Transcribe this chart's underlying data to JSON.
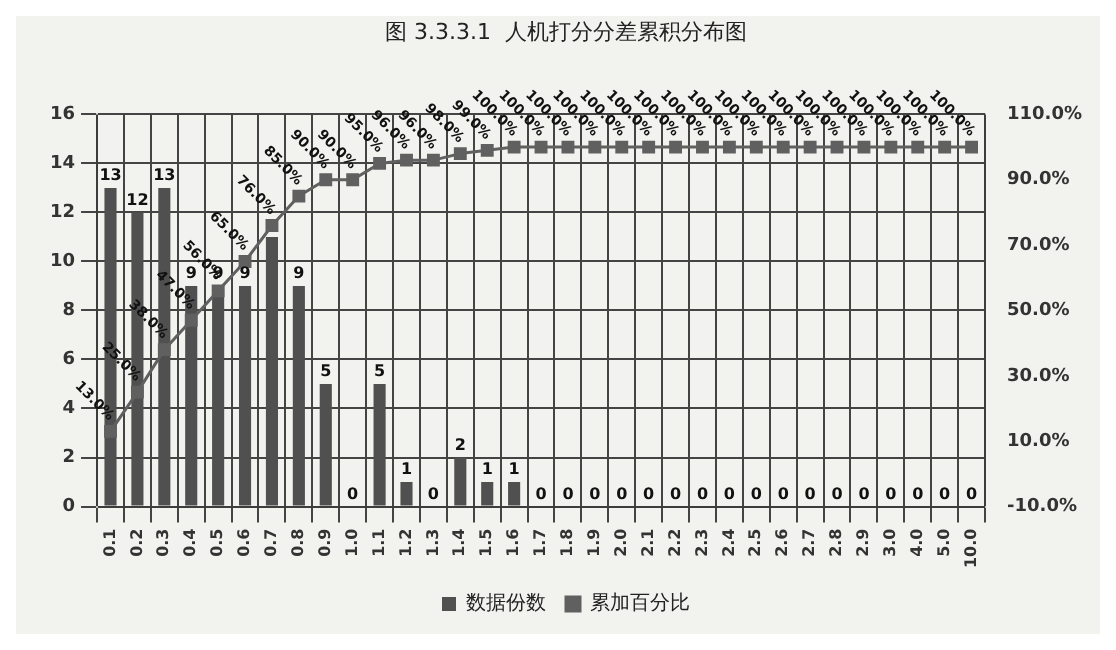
{
  "chart_data": {
    "type": "bar",
    "title": "图 3.3.3.1  人机打分分差累积分布图",
    "categories": [
      "0.1",
      "0.2",
      "0.3",
      "0.4",
      "0.5",
      "0.6",
      "0.7",
      "0.8",
      "0.9",
      "1.0",
      "1.1",
      "1.2",
      "1.3",
      "1.4",
      "1.5",
      "1.6",
      "1.7",
      "1.8",
      "1.9",
      "2.0",
      "2.1",
      "2.2",
      "2.3",
      "2.4",
      "2.5",
      "2.6",
      "2.7",
      "2.8",
      "2.9",
      "3.0",
      "4.0",
      "5.0",
      "10.0"
    ],
    "series": [
      {
        "name": "数据份数",
        "color": "#505050",
        "values": [
          13,
          12,
          13,
          9,
          9,
          9,
          11,
          9,
          5,
          0,
          5,
          1,
          0,
          2,
          1,
          1,
          0,
          0,
          0,
          0,
          0,
          0,
          0,
          0,
          0,
          0,
          0,
          0,
          0,
          0,
          0,
          0,
          0
        ],
        "value_labels": [
          "13",
          "12",
          "13",
          "9",
          "9",
          "9",
          null,
          "9",
          "5",
          "0",
          "5",
          "1",
          "0",
          "2",
          "1",
          "1",
          "0",
          "0",
          "0",
          "0",
          "0",
          "0",
          "0",
          "0",
          "0",
          "0",
          "0",
          "0",
          "0",
          "0",
          "0",
          "0",
          "0"
        ]
      },
      {
        "name": "累加百分比",
        "type": "line",
        "axis": "y2",
        "color": "#606060",
        "marker": "square",
        "values": [
          13,
          25,
          38,
          47,
          56,
          65,
          76,
          85,
          90,
          90,
          95,
          96,
          96,
          98,
          99,
          100,
          100,
          100,
          100,
          100,
          100,
          100,
          100,
          100,
          100,
          100,
          100,
          100,
          100,
          100,
          100,
          100,
          100
        ],
        "value_labels": [
          "13.0%",
          "25.0%",
          "38.0%",
          "47.0%",
          "56.0%",
          "65.0%",
          "76.0%",
          "85.0%",
          "90.0%",
          "90.0%",
          "95.0%",
          "96.0%",
          "96.0%",
          "98.0%",
          "99.0%",
          "100.0%",
          "100.0%",
          "100.0%",
          "100.0%",
          "100.0%",
          "100.0%",
          "100.0%",
          "100.0%",
          "100.0%",
          "100.0%",
          "100.0%",
          "100.0%",
          "100.0%",
          "100.0%",
          "100.0%",
          "100.0%",
          "100.0%",
          "100.0%"
        ]
      }
    ],
    "ylim": [
      0,
      16
    ],
    "yticks": [
      0,
      2,
      4,
      6,
      8,
      10,
      12,
      14,
      16
    ],
    "y2lim": [
      -10,
      110
    ],
    "y2ticks": [
      {
        "value": -10,
        "label": "-10.0%"
      },
      {
        "value": 10,
        "label": "10.0%"
      },
      {
        "value": 30,
        "label": "30.0%"
      },
      {
        "value": 50,
        "label": "50.0%"
      },
      {
        "value": 70,
        "label": "70.0%"
      },
      {
        "value": 90,
        "label": "90.0%"
      },
      {
        "value": 110,
        "label": "110.0%"
      }
    ],
    "grid": true,
    "legend": "bottom"
  }
}
